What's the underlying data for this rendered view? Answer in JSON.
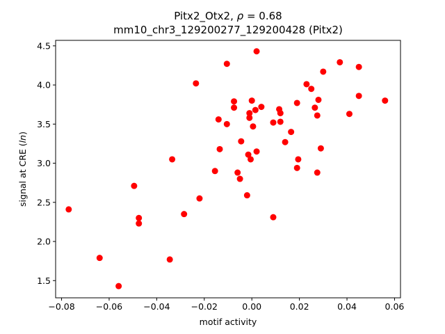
{
  "chart_data": {
    "type": "scatter",
    "title_line1_prefix": "Pitx2_Otx2, ",
    "title_line1_rho": "ρ",
    "title_line1_suffix": " = 0.68",
    "title_line2": "mm10_chr3_129200277_129200428 (Pitx2)",
    "xlabel": "motif activity",
    "ylabel_prefix": "signal at CRE (",
    "ylabel_italic": "ln",
    "ylabel_suffix": ")",
    "xlim": [
      -0.0825,
      0.0625
    ],
    "ylim": [
      1.28,
      4.57
    ],
    "xticks": [
      -0.08,
      -0.06,
      -0.04,
      -0.02,
      0.0,
      0.02,
      0.04,
      0.06
    ],
    "xtick_labels": [
      "−0.08",
      "−0.06",
      "−0.04",
      "−0.02",
      "0.00",
      "0.02",
      "0.04",
      "0.06"
    ],
    "yticks": [
      1.5,
      2.0,
      2.5,
      3.0,
      3.5,
      4.0,
      4.5
    ],
    "ytick_labels": [
      "1.5",
      "2.0",
      "2.5",
      "3.0",
      "3.5",
      "4.0",
      "4.5"
    ],
    "grid": false,
    "marker_color": "#ff0000",
    "points": [
      {
        "x": -0.077,
        "y": 2.41
      },
      {
        "x": -0.064,
        "y": 1.79
      },
      {
        "x": -0.056,
        "y": 1.43
      },
      {
        "x": -0.0495,
        "y": 2.71
      },
      {
        "x": -0.0475,
        "y": 2.3
      },
      {
        "x": -0.0475,
        "y": 2.23
      },
      {
        "x": -0.0345,
        "y": 1.77
      },
      {
        "x": -0.0335,
        "y": 3.05
      },
      {
        "x": -0.0285,
        "y": 2.35
      },
      {
        "x": -0.0235,
        "y": 4.02
      },
      {
        "x": -0.022,
        "y": 2.55
      },
      {
        "x": -0.0155,
        "y": 2.9
      },
      {
        "x": -0.014,
        "y": 3.56
      },
      {
        "x": -0.0135,
        "y": 3.18
      },
      {
        "x": -0.0105,
        "y": 4.27
      },
      {
        "x": -0.0105,
        "y": 3.5
      },
      {
        "x": -0.0075,
        "y": 3.79
      },
      {
        "x": -0.0075,
        "y": 3.71
      },
      {
        "x": -0.006,
        "y": 2.88
      },
      {
        "x": -0.005,
        "y": 2.8
      },
      {
        "x": -0.0045,
        "y": 3.28
      },
      {
        "x": -0.002,
        "y": 2.59
      },
      {
        "x": -0.0015,
        "y": 3.11
      },
      {
        "x": -0.001,
        "y": 3.64
      },
      {
        "x": -0.001,
        "y": 3.58
      },
      {
        "x": -0.0005,
        "y": 3.05
      },
      {
        "x": 0.0,
        "y": 3.8
      },
      {
        "x": 0.0005,
        "y": 3.47
      },
      {
        "x": 0.0015,
        "y": 3.68
      },
      {
        "x": 0.002,
        "y": 4.43
      },
      {
        "x": 0.002,
        "y": 3.15
      },
      {
        "x": 0.004,
        "y": 3.72
      },
      {
        "x": 0.009,
        "y": 3.52
      },
      {
        "x": 0.009,
        "y": 2.31
      },
      {
        "x": 0.0115,
        "y": 3.69
      },
      {
        "x": 0.012,
        "y": 3.64
      },
      {
        "x": 0.012,
        "y": 3.53
      },
      {
        "x": 0.014,
        "y": 3.27
      },
      {
        "x": 0.0165,
        "y": 3.4
      },
      {
        "x": 0.019,
        "y": 3.77
      },
      {
        "x": 0.019,
        "y": 2.94
      },
      {
        "x": 0.0195,
        "y": 3.05
      },
      {
        "x": 0.023,
        "y": 4.01
      },
      {
        "x": 0.025,
        "y": 3.95
      },
      {
        "x": 0.0265,
        "y": 3.71
      },
      {
        "x": 0.0275,
        "y": 3.61
      },
      {
        "x": 0.0275,
        "y": 2.88
      },
      {
        "x": 0.028,
        "y": 3.81
      },
      {
        "x": 0.029,
        "y": 3.19
      },
      {
        "x": 0.03,
        "y": 4.17
      },
      {
        "x": 0.037,
        "y": 4.29
      },
      {
        "x": 0.041,
        "y": 3.63
      },
      {
        "x": 0.045,
        "y": 3.86
      },
      {
        "x": 0.045,
        "y": 4.23
      },
      {
        "x": 0.056,
        "y": 3.8
      }
    ]
  }
}
